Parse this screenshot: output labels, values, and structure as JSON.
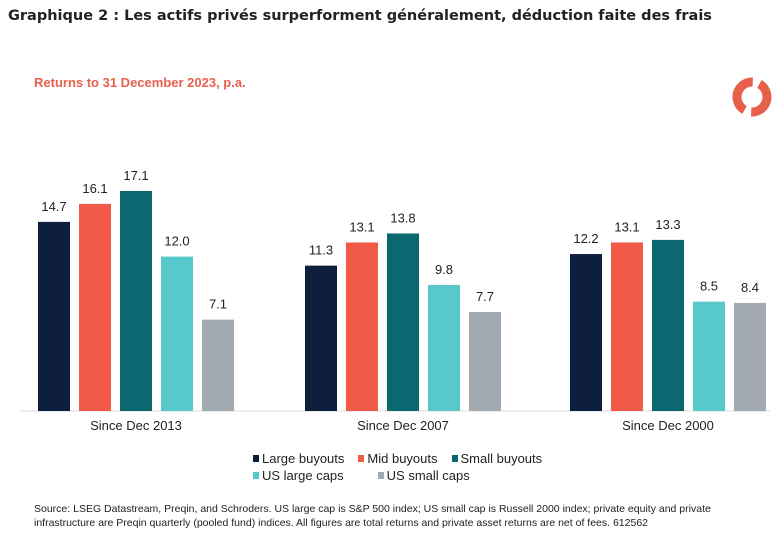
{
  "title": "Graphique 2 : Les actifs privés surperforment généralement, déduction faite des frais",
  "chart_data": {
    "type": "bar",
    "title": "Returns to 31 December 2023, p.a.",
    "categories": [
      "Since Dec 2013",
      "Since Dec 2007",
      "Since Dec 2000"
    ],
    "series": [
      {
        "name": "Large buyouts",
        "color": "#0d1f3c",
        "values": [
          14.7,
          11.3,
          12.2
        ]
      },
      {
        "name": "Mid buyouts",
        "color": "#f05a46",
        "values": [
          16.1,
          13.1,
          13.1
        ]
      },
      {
        "name": "Small buyouts",
        "color": "#0b6770",
        "values": [
          17.1,
          13.8,
          13.3
        ]
      },
      {
        "name": "US large caps",
        "color": "#58c9cb",
        "values": [
          12.0,
          9.8,
          8.5
        ]
      },
      {
        "name": "US small caps",
        "color": "#a3aab2",
        "values": [
          7.1,
          7.7,
          8.4
        ]
      }
    ],
    "ylim": [
      0,
      17.1
    ],
    "grid": false,
    "legend": "bottom"
  },
  "source": "Source: LSEG Datastream, Preqin, and Schroders. US large cap is S&P 500 index; US small cap is Russell 2000 index; private equity and private infrastructure are Preqin quarterly (pooled fund) indices. All figures are total returns and private asset returns are net of fees. 612562",
  "logo": {
    "icon": "schroders-ring-logo",
    "color": "#e8604c"
  }
}
